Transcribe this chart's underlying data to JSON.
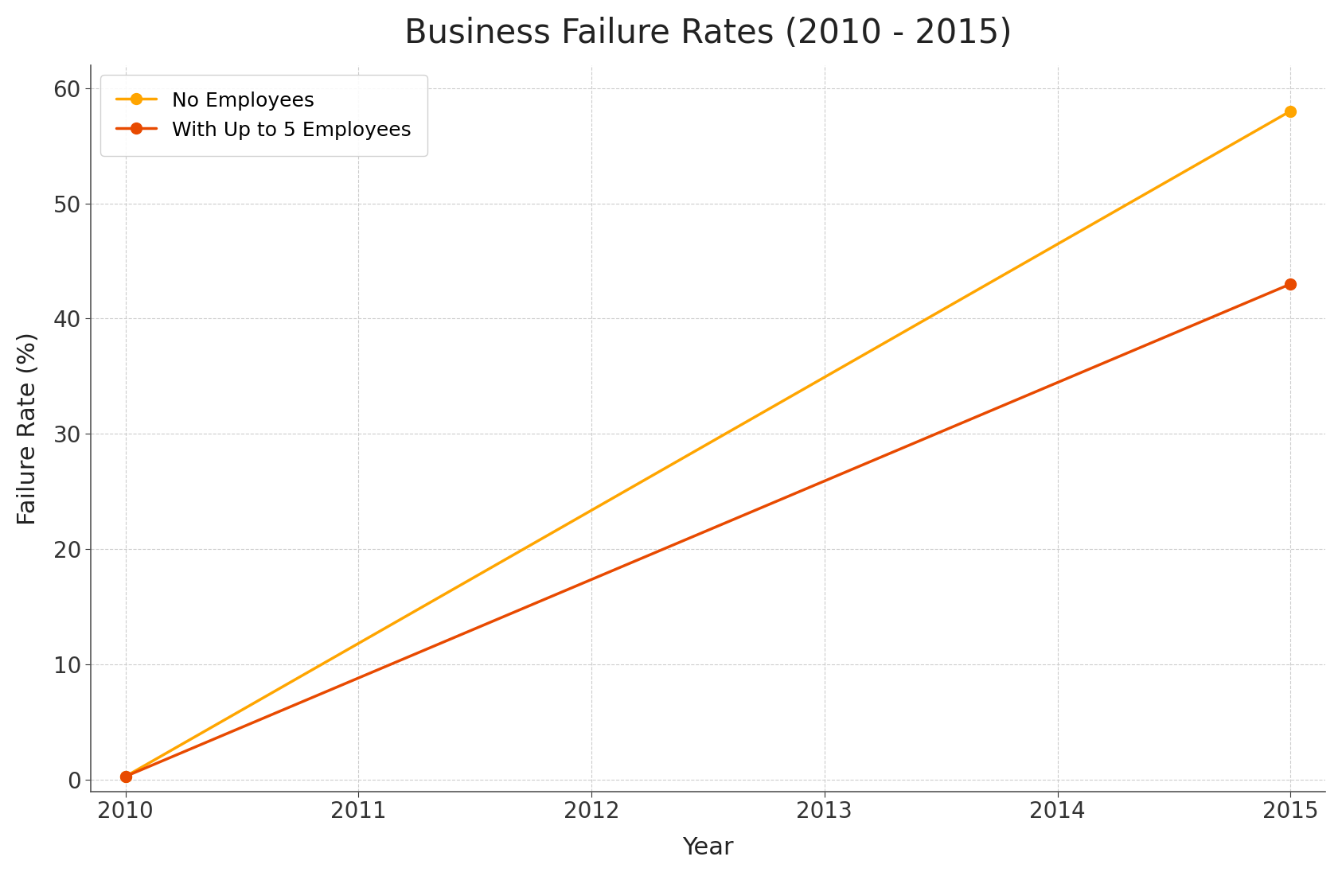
{
  "title": "Business Failure Rates (2010 - 2015)",
  "xlabel": "Year",
  "ylabel": "Failure Rate (%)",
  "years": [
    2010,
    2015
  ],
  "series": [
    {
      "label": "No Employees",
      "values": [
        0.3,
        58.0
      ],
      "color": "#FFA500",
      "marker": "o",
      "linewidth": 2.5,
      "markersize": 10
    },
    {
      "label": "With Up to 5 Employees",
      "values": [
        0.3,
        43.0
      ],
      "color": "#E84A00",
      "marker": "o",
      "linewidth": 2.5,
      "markersize": 10
    }
  ],
  "ylim": [
    -1,
    62
  ],
  "yticks": [
    0,
    10,
    20,
    30,
    40,
    50,
    60
  ],
  "xticks": [
    2010,
    2011,
    2012,
    2013,
    2014,
    2015
  ],
  "background_color": "#ffffff",
  "title_fontsize": 30,
  "label_fontsize": 22,
  "tick_fontsize": 20,
  "legend_fontsize": 18
}
